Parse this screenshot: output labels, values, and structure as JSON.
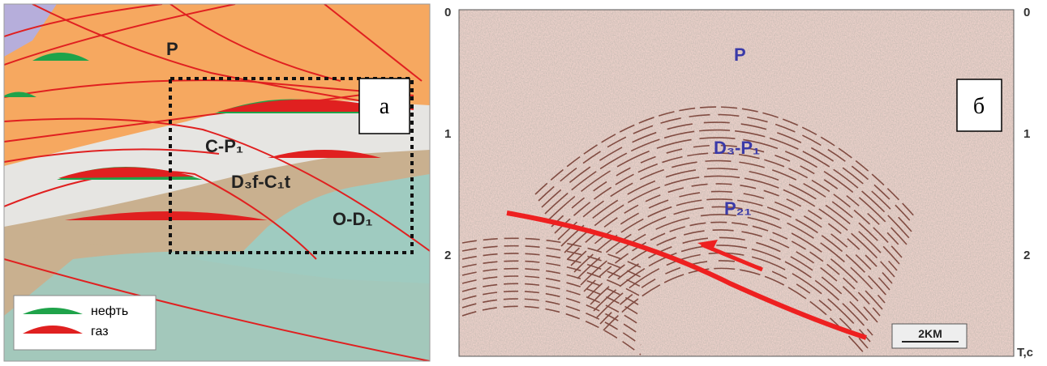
{
  "left_panel": {
    "label": "а",
    "formations": [
      "P",
      "C-P₁",
      "D₃f-C₁t",
      "O-D₁"
    ],
    "legend": [
      "нефть",
      "газ"
    ]
  },
  "right_panel": {
    "label": "б",
    "left_axis": [
      "0",
      "1",
      "2"
    ],
    "right_axis": [
      "0",
      "1",
      "2"
    ],
    "axis_unit": "T,c",
    "formations": [
      "P",
      "D₃-P₁",
      "P₂₁"
    ],
    "scale_bar": "2KM"
  }
}
